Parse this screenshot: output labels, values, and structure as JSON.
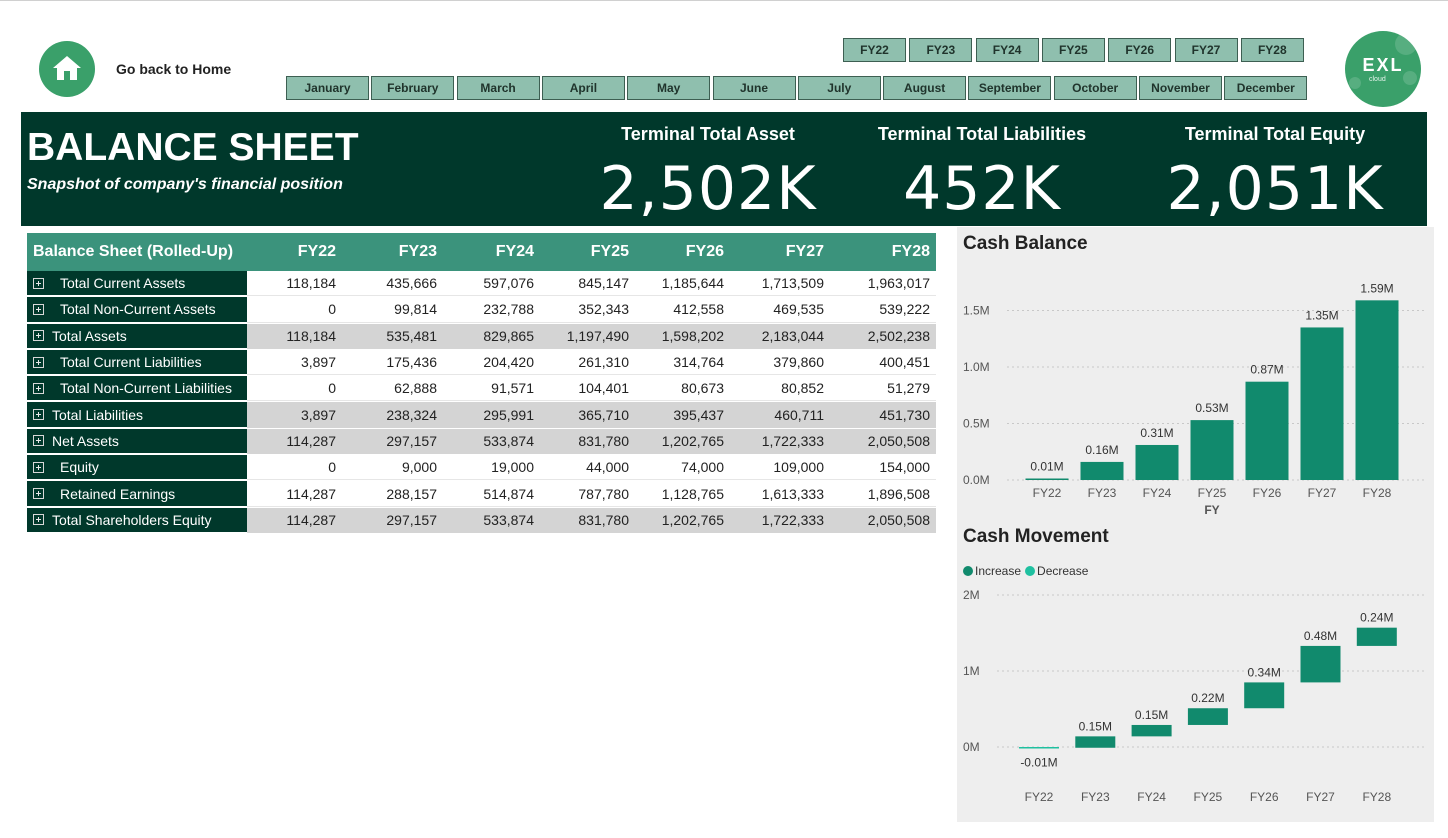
{
  "nav": {
    "home_label": "Go back to Home"
  },
  "fy_slicer": [
    "FY22",
    "FY23",
    "FY24",
    "FY25",
    "FY26",
    "FY27",
    "FY28"
  ],
  "month_slicer": [
    "January",
    "February",
    "March",
    "April",
    "May",
    "June",
    "July",
    "August",
    "September",
    "October",
    "November",
    "December"
  ],
  "logo": {
    "wordmark": "EXL",
    "sub": "cloud"
  },
  "banner": {
    "title": "BALANCE SHEET",
    "subtitle": "Snapshot of company's financial position",
    "kpis": [
      {
        "label": "Terminal Total Asset",
        "value": "2,502K"
      },
      {
        "label": "Terminal Total Liabilities",
        "value": "452K"
      },
      {
        "label": "Terminal Total Equity",
        "value": "2,051K"
      }
    ]
  },
  "table": {
    "header": [
      "Balance Sheet (Rolled-Up)",
      "FY22",
      "FY23",
      "FY24",
      "FY25",
      "FY26",
      "FY27",
      "FY28"
    ],
    "rows": [
      {
        "label": "Total Current Assets",
        "indent": true,
        "shade": "white",
        "values": [
          "118,184",
          "435,666",
          "597,076",
          "845,147",
          "1,185,644",
          "1,713,509",
          "1,963,017"
        ]
      },
      {
        "label": "Total Non-Current Assets",
        "indent": true,
        "shade": "white",
        "values": [
          "0",
          "99,814",
          "232,788",
          "352,343",
          "412,558",
          "469,535",
          "539,222"
        ]
      },
      {
        "label": "Total Assets",
        "indent": false,
        "shade": "gray",
        "values": [
          "118,184",
          "535,481",
          "829,865",
          "1,197,490",
          "1,598,202",
          "2,183,044",
          "2,502,238"
        ]
      },
      {
        "label": "Total Current Liabilities",
        "indent": true,
        "shade": "white",
        "values": [
          "3,897",
          "175,436",
          "204,420",
          "261,310",
          "314,764",
          "379,860",
          "400,451"
        ]
      },
      {
        "label": "Total Non-Current Liabilities",
        "indent": true,
        "shade": "white",
        "values": [
          "0",
          "62,888",
          "91,571",
          "104,401",
          "80,673",
          "80,852",
          "51,279"
        ]
      },
      {
        "label": "Total Liabilities",
        "indent": false,
        "shade": "gray",
        "values": [
          "3,897",
          "238,324",
          "295,991",
          "365,710",
          "395,437",
          "460,711",
          "451,730"
        ]
      },
      {
        "label": "Net Assets",
        "indent": false,
        "shade": "gray",
        "values": [
          "114,287",
          "297,157",
          "533,874",
          "831,780",
          "1,202,765",
          "1,722,333",
          "2,050,508"
        ]
      },
      {
        "label": "Equity",
        "indent": true,
        "shade": "white",
        "values": [
          "0",
          "9,000",
          "19,000",
          "44,000",
          "74,000",
          "109,000",
          "154,000"
        ]
      },
      {
        "label": "Retained Earnings",
        "indent": true,
        "shade": "white",
        "values": [
          "114,287",
          "288,157",
          "514,874",
          "787,780",
          "1,128,765",
          "1,613,333",
          "1,896,508"
        ]
      },
      {
        "label": "Total Shareholders Equity",
        "indent": false,
        "shade": "gray",
        "values": [
          "114,287",
          "297,157",
          "533,874",
          "831,780",
          "1,202,765",
          "1,722,333",
          "2,050,508"
        ]
      }
    ]
  },
  "colors": {
    "dark_green": "#00382b",
    "header_green": "#3b937c",
    "bar_green": "#118a6d",
    "increase": "#118a6d",
    "decrease": "#1fc0a0"
  },
  "chart_data": [
    {
      "type": "bar",
      "title": "Cash Balance",
      "xlabel": "FY",
      "ylabel": "",
      "categories": [
        "FY22",
        "FY23",
        "FY24",
        "FY25",
        "FY26",
        "FY27",
        "FY28"
      ],
      "values": [
        0.01,
        0.16,
        0.31,
        0.53,
        0.87,
        1.35,
        1.59
      ],
      "data_labels": [
        "0.01M",
        "0.16M",
        "0.31M",
        "0.53M",
        "0.87M",
        "1.35M",
        "1.59M"
      ],
      "yticks": [
        "0.0M",
        "0.5M",
        "1.0M",
        "1.5M"
      ],
      "ylim": [
        0,
        1.7
      ],
      "grid": true
    },
    {
      "type": "waterfall",
      "title": "Cash Movement",
      "categories": [
        "FY22",
        "FY23",
        "FY24",
        "FY25",
        "FY26",
        "FY27",
        "FY28"
      ],
      "values": [
        -0.01,
        0.15,
        0.15,
        0.22,
        0.34,
        0.48,
        0.24
      ],
      "data_labels": [
        "-0.01M",
        "0.15M",
        "0.15M",
        "0.22M",
        "0.34M",
        "0.48M",
        "0.24M"
      ],
      "legend": [
        "Increase",
        "Decrease"
      ],
      "legend_position": "top-left",
      "yticks": [
        "0M",
        "1M",
        "2M"
      ],
      "ylim": [
        -0.15,
        2.0
      ],
      "grid": true
    }
  ]
}
